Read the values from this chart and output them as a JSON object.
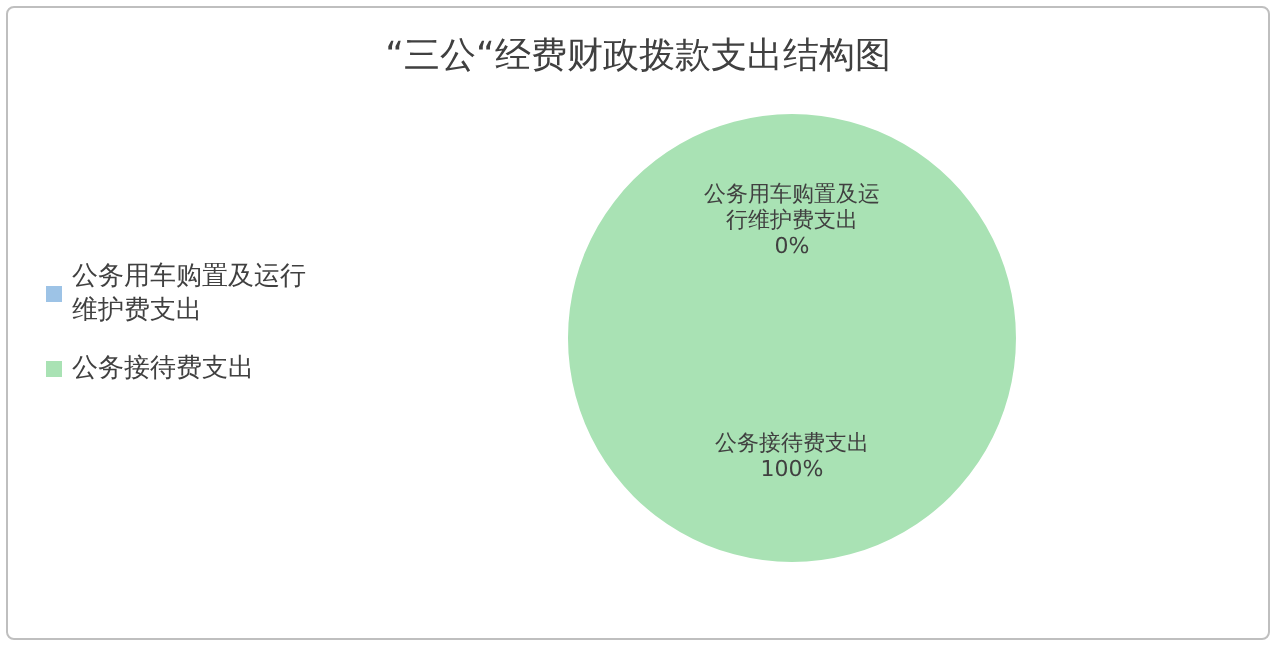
{
  "chart_data": {
    "type": "pie",
    "title": "“三公“经费财政拨款支出结构图",
    "categories": [
      "公务用车购置及运行维护费支出",
      "公务接待费支出"
    ],
    "values": [
      0,
      100
    ],
    "colors": [
      "#9dc3e6",
      "#a9e2b4"
    ],
    "value_labels": [
      "0%",
      "100%"
    ],
    "legend": "left"
  }
}
